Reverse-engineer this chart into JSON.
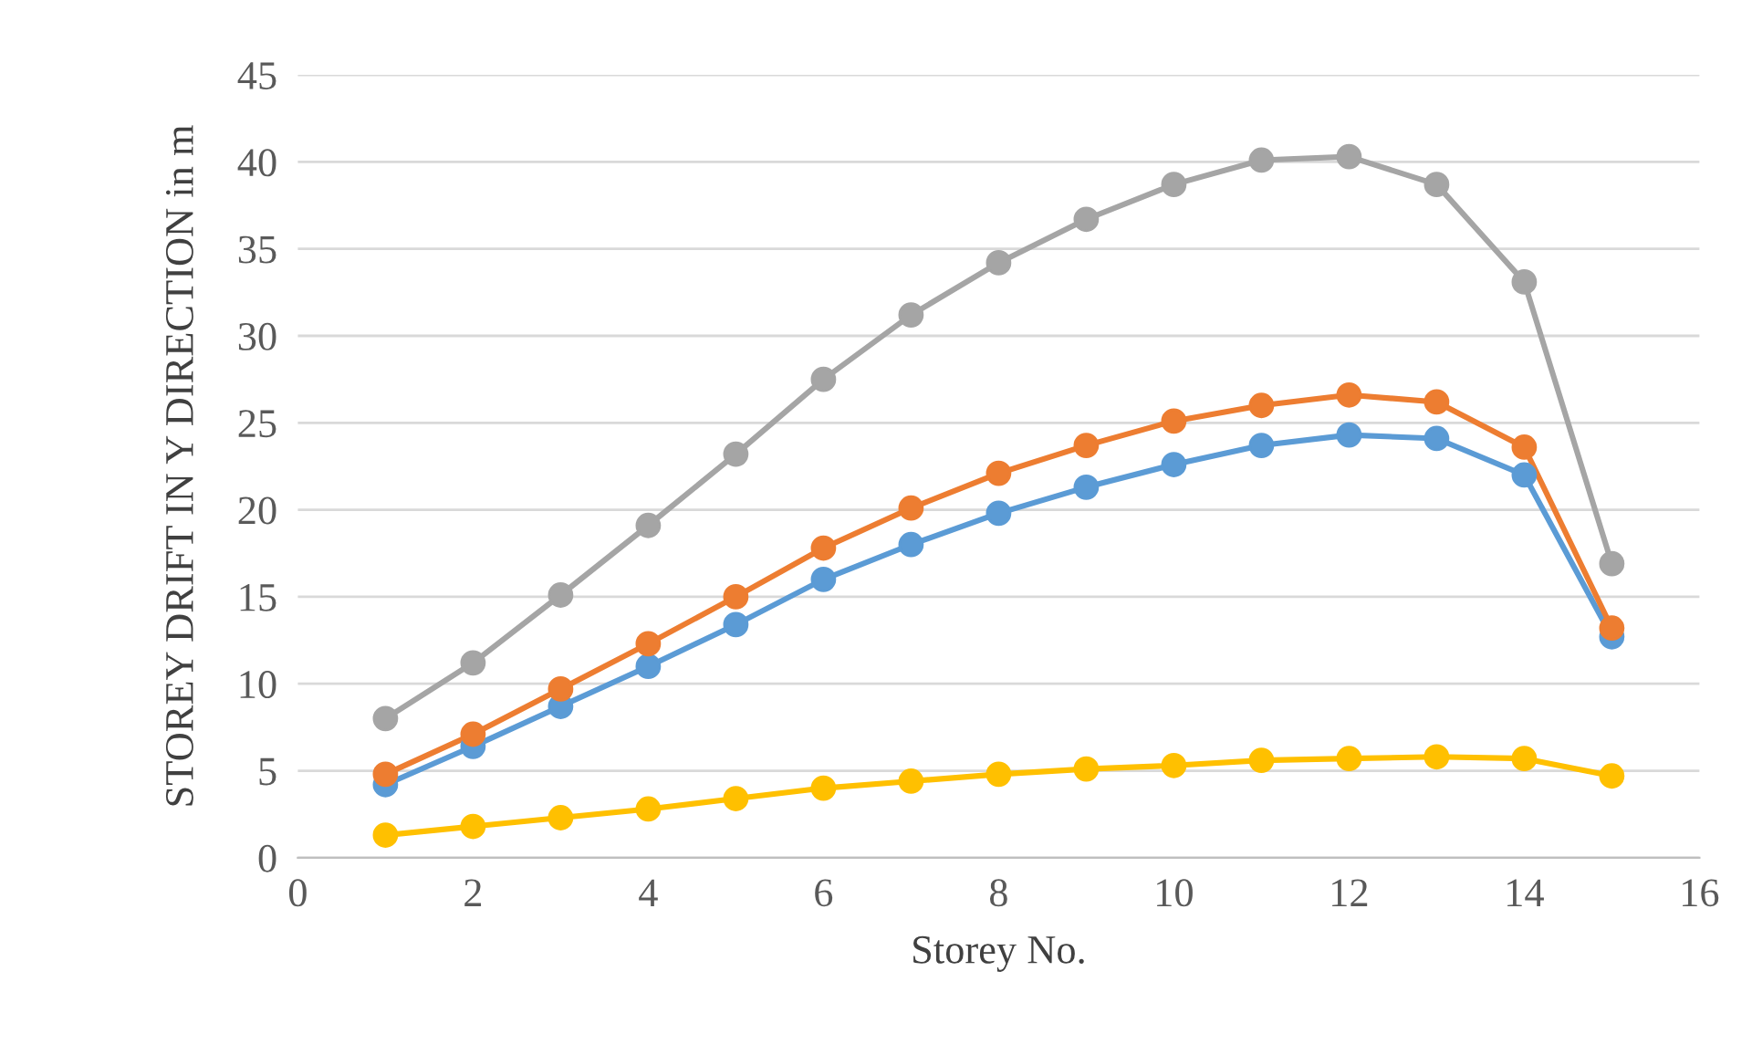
{
  "chart_data": {
    "type": "line",
    "xlabel": "Storey No.",
    "ylabel": "STOREY DRIFT IN Y DIRECTION in m",
    "x": [
      1,
      2,
      3,
      4,
      5,
      6,
      7,
      8,
      9,
      10,
      11,
      12,
      13,
      14,
      15
    ],
    "series": [
      {
        "color": "#5b9bd5",
        "values": [
          4.2,
          6.4,
          8.7,
          11.0,
          13.4,
          16.0,
          18.0,
          19.8,
          21.3,
          22.6,
          23.7,
          24.3,
          24.1,
          22.0,
          12.7
        ]
      },
      {
        "color": "#ed7d31",
        "values": [
          4.8,
          7.1,
          9.7,
          12.3,
          15.0,
          17.8,
          20.1,
          22.1,
          23.7,
          25.1,
          26.0,
          26.6,
          26.2,
          23.6,
          13.2
        ]
      },
      {
        "color": "#a5a5a5",
        "values": [
          8.0,
          11.2,
          15.1,
          19.1,
          23.2,
          27.5,
          31.2,
          34.2,
          36.7,
          38.7,
          40.1,
          40.3,
          38.7,
          33.1,
          16.9
        ]
      },
      {
        "color": "#ffc000",
        "values": [
          1.3,
          1.8,
          2.3,
          2.8,
          3.4,
          4.0,
          4.4,
          4.8,
          5.1,
          5.3,
          5.6,
          5.7,
          5.8,
          5.7,
          4.7
        ]
      }
    ],
    "xlim": [
      0,
      16
    ],
    "xticks": [
      0,
      2,
      4,
      6,
      8,
      10,
      12,
      14,
      16
    ],
    "ylim": [
      0,
      45
    ],
    "yticks": [
      0,
      5,
      10,
      15,
      20,
      25,
      30,
      35,
      40,
      45
    ],
    "grid": "y",
    "marker": "circle",
    "line_style": "solid"
  }
}
